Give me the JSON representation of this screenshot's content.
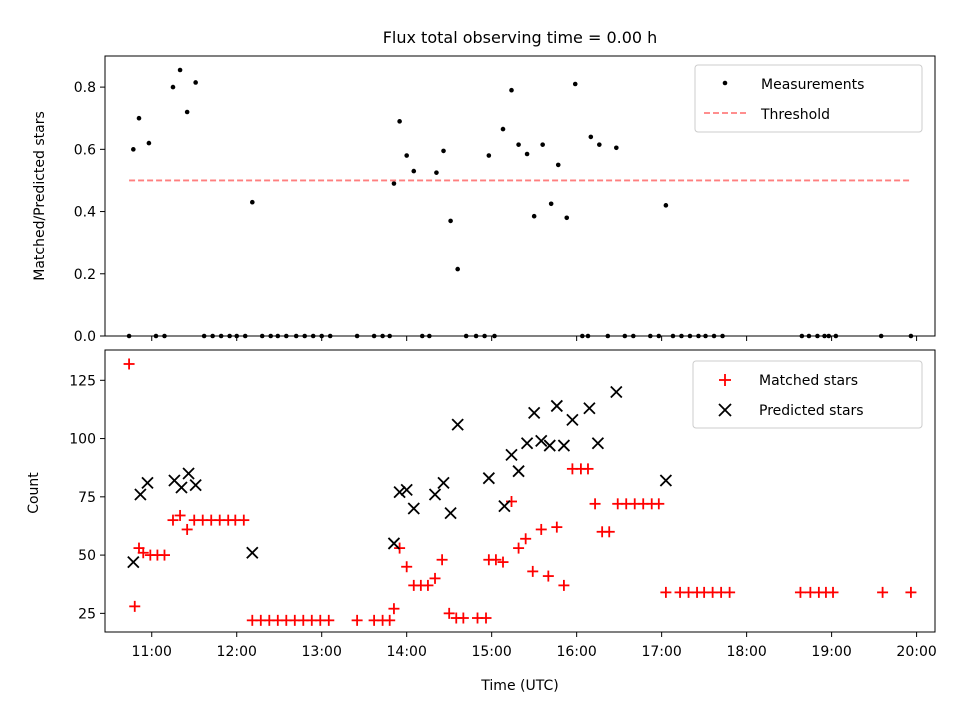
{
  "figure": {
    "title": "Flux total observing time = 0.00 h"
  },
  "chart_data": [
    {
      "type": "scatter",
      "panel": "top",
      "title": "Flux total observing time = 0.00 h",
      "xlabel": "",
      "ylabel": "Matched/Predicted stars",
      "xlim": [
        "10:27",
        "20:13"
      ],
      "ylim": [
        0,
        0.9
      ],
      "yticks": [
        0.0,
        0.2,
        0.4,
        0.6,
        0.8
      ],
      "ytick_labels": [
        "0.0",
        "0.2",
        "0.4",
        "0.6",
        "0.8"
      ],
      "xticks": [
        "11:00",
        "12:00",
        "13:00",
        "14:00",
        "15:00",
        "16:00",
        "17:00",
        "18:00",
        "19:00",
        "20:00"
      ],
      "show_xtick_labels": false,
      "grid": false,
      "legend": {
        "placement": "top-right",
        "entries": [
          {
            "label": "Measurements",
            "marker": "dot",
            "color": "#000000"
          },
          {
            "label": "Threshold",
            "marker": "dashed-line",
            "color": "#ff7f7f"
          }
        ]
      },
      "series": [
        {
          "name": "Measurements",
          "marker": "dot",
          "color": "#000000",
          "points": [
            [
              "10:44",
              0.0
            ],
            [
              "10:47",
              0.6
            ],
            [
              "10:51",
              0.7
            ],
            [
              "10:58",
              0.62
            ],
            [
              "11:03",
              0.0
            ],
            [
              "11:09",
              0.0
            ],
            [
              "11:15",
              0.8
            ],
            [
              "11:20",
              0.855
            ],
            [
              "11:25",
              0.72
            ],
            [
              "11:31",
              0.815
            ],
            [
              "11:37",
              0.0
            ],
            [
              "11:43",
              0.0
            ],
            [
              "11:49",
              0.0
            ],
            [
              "11:55",
              0.0
            ],
            [
              "12:00",
              0.0
            ],
            [
              "12:06",
              0.0
            ],
            [
              "12:11",
              0.43
            ],
            [
              "12:18",
              0.0
            ],
            [
              "12:24",
              0.0
            ],
            [
              "12:29",
              0.0
            ],
            [
              "12:35",
              0.0
            ],
            [
              "12:42",
              0.0
            ],
            [
              "12:48",
              0.0
            ],
            [
              "12:54",
              0.0
            ],
            [
              "13:00",
              0.0
            ],
            [
              "13:06",
              0.0
            ],
            [
              "13:25",
              0.0
            ],
            [
              "13:37",
              0.0
            ],
            [
              "13:43",
              0.0
            ],
            [
              "13:48",
              0.0
            ],
            [
              "13:51",
              0.49
            ],
            [
              "13:55",
              0.69
            ],
            [
              "14:00",
              0.58
            ],
            [
              "14:05",
              0.53
            ],
            [
              "14:11",
              0.0
            ],
            [
              "14:16",
              0.0
            ],
            [
              "14:21",
              0.525
            ],
            [
              "14:26",
              0.595
            ],
            [
              "14:31",
              0.37
            ],
            [
              "14:36",
              0.215
            ],
            [
              "14:42",
              0.0
            ],
            [
              "14:49",
              0.0
            ],
            [
              "14:55",
              0.0
            ],
            [
              "14:58",
              0.58
            ],
            [
              "15:02",
              0.0
            ],
            [
              "15:08",
              0.665
            ],
            [
              "15:14",
              0.79
            ],
            [
              "15:19",
              0.615
            ],
            [
              "15:25",
              0.585
            ],
            [
              "15:30",
              0.385
            ],
            [
              "15:36",
              0.615
            ],
            [
              "15:42",
              0.425
            ],
            [
              "15:47",
              0.55
            ],
            [
              "15:53",
              0.38
            ],
            [
              "15:59",
              0.81
            ],
            [
              "16:04",
              0.0
            ],
            [
              "16:08",
              0.0
            ],
            [
              "16:10",
              0.64
            ],
            [
              "16:16",
              0.615
            ],
            [
              "16:22",
              0.0
            ],
            [
              "16:28",
              0.605
            ],
            [
              "16:34",
              0.0
            ],
            [
              "16:40",
              0.0
            ],
            [
              "16:52",
              0.0
            ],
            [
              "16:58",
              0.0
            ],
            [
              "17:03",
              0.42
            ],
            [
              "17:08",
              0.0
            ],
            [
              "17:14",
              0.0
            ],
            [
              "17:20",
              0.0
            ],
            [
              "17:26",
              0.0
            ],
            [
              "17:31",
              0.0
            ],
            [
              "17:37",
              0.0
            ],
            [
              "17:43",
              0.0
            ],
            [
              "18:39",
              0.0
            ],
            [
              "18:44",
              0.0
            ],
            [
              "18:50",
              0.0
            ],
            [
              "18:55",
              0.0
            ],
            [
              "18:58",
              0.0
            ],
            [
              "19:03",
              0.0
            ],
            [
              "19:35",
              0.0
            ],
            [
              "19:56",
              0.0
            ]
          ]
        },
        {
          "name": "Threshold",
          "style": "dashed",
          "color": "#ff7f7f",
          "points": [
            [
              "10:44",
              0.5
            ],
            [
              "19:56",
              0.5
            ]
          ]
        }
      ]
    },
    {
      "type": "scatter",
      "panel": "bottom",
      "title": "",
      "xlabel": "Time (UTC)",
      "ylabel": "Count",
      "xlim": [
        "10:27",
        "20:13"
      ],
      "ylim": [
        17,
        138
      ],
      "yticks": [
        25,
        50,
        75,
        100,
        125
      ],
      "ytick_labels": [
        "25",
        "50",
        "75",
        "100",
        "125"
      ],
      "xticks": [
        "11:00",
        "12:00",
        "13:00",
        "14:00",
        "15:00",
        "16:00",
        "17:00",
        "18:00",
        "19:00",
        "20:00"
      ],
      "xtick_labels": [
        "11:00",
        "12:00",
        "13:00",
        "14:00",
        "15:00",
        "16:00",
        "17:00",
        "18:00",
        "19:00",
        "20:00"
      ],
      "grid": false,
      "legend": {
        "placement": "top-right",
        "entries": [
          {
            "label": "Matched stars",
            "marker": "plus",
            "color": "#ff0000"
          },
          {
            "label": "Predicted stars",
            "marker": "x",
            "color": "#000000"
          }
        ]
      },
      "series": [
        {
          "name": "Matched stars",
          "marker": "plus",
          "color": "#ff0000",
          "points": [
            [
              "10:44",
              132
            ],
            [
              "10:48",
              28
            ],
            [
              "10:51",
              53
            ],
            [
              "10:54",
              51
            ],
            [
              "10:59",
              50
            ],
            [
              "11:04",
              50
            ],
            [
              "11:09",
              50
            ],
            [
              "11:15",
              65
            ],
            [
              "11:20",
              67
            ],
            [
              "11:25",
              61
            ],
            [
              "11:30",
              65
            ],
            [
              "11:36",
              65
            ],
            [
              "11:42",
              65
            ],
            [
              "11:48",
              65
            ],
            [
              "11:54",
              65
            ],
            [
              "11:59",
              65
            ],
            [
              "12:05",
              65
            ],
            [
              "12:11",
              22
            ],
            [
              "12:17",
              22
            ],
            [
              "12:23",
              22
            ],
            [
              "12:29",
              22
            ],
            [
              "12:35",
              22
            ],
            [
              "12:41",
              22
            ],
            [
              "12:47",
              22
            ],
            [
              "12:53",
              22
            ],
            [
              "12:59",
              22
            ],
            [
              "13:05",
              22
            ],
            [
              "13:25",
              22
            ],
            [
              "13:37",
              22
            ],
            [
              "13:43",
              22
            ],
            [
              "13:48",
              22
            ],
            [
              "13:51",
              27
            ],
            [
              "13:55",
              53
            ],
            [
              "14:00",
              45
            ],
            [
              "14:05",
              37
            ],
            [
              "14:10",
              37
            ],
            [
              "14:15",
              37
            ],
            [
              "14:20",
              40
            ],
            [
              "14:25",
              48
            ],
            [
              "14:30",
              25
            ],
            [
              "14:35",
              23
            ],
            [
              "14:40",
              23
            ],
            [
              "14:50",
              23
            ],
            [
              "14:56",
              23
            ],
            [
              "14:58",
              48
            ],
            [
              "15:03",
              48
            ],
            [
              "15:08",
              47
            ],
            [
              "15:14",
              73
            ],
            [
              "15:19",
              53
            ],
            [
              "15:24",
              57
            ],
            [
              "15:29",
              43
            ],
            [
              "15:35",
              61
            ],
            [
              "15:40",
              41
            ],
            [
              "15:46",
              62
            ],
            [
              "15:51",
              37
            ],
            [
              "15:57",
              87
            ],
            [
              "16:03",
              87
            ],
            [
              "16:08",
              87
            ],
            [
              "16:13",
              72
            ],
            [
              "16:18",
              60
            ],
            [
              "16:23",
              60
            ],
            [
              "16:29",
              72
            ],
            [
              "16:35",
              72
            ],
            [
              "16:41",
              72
            ],
            [
              "16:47",
              72
            ],
            [
              "16:53",
              72
            ],
            [
              "16:58",
              72
            ],
            [
              "17:03",
              34
            ],
            [
              "17:13",
              34
            ],
            [
              "17:19",
              34
            ],
            [
              "17:25",
              34
            ],
            [
              "17:30",
              34
            ],
            [
              "17:36",
              34
            ],
            [
              "17:42",
              34
            ],
            [
              "17:48",
              34
            ],
            [
              "18:38",
              34
            ],
            [
              "18:45",
              34
            ],
            [
              "18:51",
              34
            ],
            [
              "18:56",
              34
            ],
            [
              "19:01",
              34
            ],
            [
              "19:36",
              34
            ],
            [
              "19:56",
              34
            ]
          ]
        },
        {
          "name": "Predicted stars",
          "marker": "x",
          "color": "#000000",
          "points": [
            [
              "10:47",
              47
            ],
            [
              "10:52",
              76
            ],
            [
              "10:57",
              81
            ],
            [
              "11:16",
              82
            ],
            [
              "11:21",
              79
            ],
            [
              "11:26",
              85
            ],
            [
              "11:31",
              80
            ],
            [
              "12:11",
              51
            ],
            [
              "13:51",
              55
            ],
            [
              "13:55",
              77
            ],
            [
              "14:00",
              78
            ],
            [
              "14:05",
              70
            ],
            [
              "14:20",
              76
            ],
            [
              "14:26",
              81
            ],
            [
              "14:31",
              68
            ],
            [
              "14:36",
              106
            ],
            [
              "14:58",
              83
            ],
            [
              "15:09",
              71
            ],
            [
              "15:14",
              93
            ],
            [
              "15:19",
              86
            ],
            [
              "15:25",
              98
            ],
            [
              "15:30",
              111
            ],
            [
              "15:35",
              99
            ],
            [
              "15:41",
              97
            ],
            [
              "15:46",
              114
            ],
            [
              "15:51",
              97
            ],
            [
              "15:57",
              108
            ],
            [
              "16:09",
              113
            ],
            [
              "16:15",
              98
            ],
            [
              "16:28",
              120
            ],
            [
              "17:03",
              82
            ]
          ]
        }
      ]
    }
  ]
}
